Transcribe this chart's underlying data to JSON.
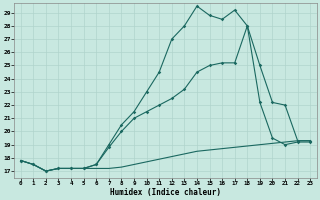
{
  "xlabel": "Humidex (Indice chaleur)",
  "bg_color": "#c8e8e0",
  "grid_color": "#b0d4cc",
  "line_color": "#1a6860",
  "xlim": [
    -0.5,
    23.5
  ],
  "ylim": [
    16.5,
    29.7
  ],
  "xticks": [
    0,
    1,
    2,
    3,
    4,
    5,
    6,
    7,
    8,
    9,
    10,
    11,
    12,
    13,
    14,
    15,
    16,
    17,
    18,
    19,
    20,
    21,
    22,
    23
  ],
  "yticks": [
    17,
    18,
    19,
    20,
    21,
    22,
    23,
    24,
    25,
    26,
    27,
    28,
    29
  ],
  "line1_x": [
    0,
    1,
    2,
    3,
    4,
    5,
    6,
    7,
    8,
    9,
    10,
    11,
    12,
    13,
    14,
    15,
    16,
    17,
    18,
    19,
    20,
    21,
    22,
    23
  ],
  "line1_y": [
    17.8,
    17.5,
    17.0,
    17.2,
    17.2,
    17.2,
    17.2,
    17.2,
    17.3,
    17.5,
    17.7,
    17.9,
    18.1,
    18.3,
    18.5,
    18.6,
    18.7,
    18.8,
    18.9,
    19.0,
    19.1,
    19.2,
    19.3,
    19.3
  ],
  "line2_x": [
    0,
    1,
    2,
    3,
    4,
    5,
    6,
    7,
    8,
    9,
    10,
    11,
    12,
    13,
    14,
    15,
    16,
    17,
    18,
    19,
    20,
    21,
    22,
    23
  ],
  "line2_y": [
    17.8,
    17.5,
    17.0,
    17.2,
    17.2,
    17.2,
    17.5,
    18.8,
    20.0,
    21.0,
    21.5,
    22.0,
    22.5,
    23.2,
    24.5,
    25.0,
    25.2,
    25.2,
    28.0,
    25.0,
    22.2,
    22.0,
    19.3,
    19.3
  ],
  "line3_x": [
    0,
    1,
    2,
    3,
    4,
    5,
    6,
    7,
    8,
    9,
    10,
    11,
    12,
    13,
    14,
    15,
    16,
    17,
    18,
    19,
    20,
    21,
    22,
    23
  ],
  "line3_y": [
    17.8,
    17.5,
    17.0,
    17.2,
    17.2,
    17.2,
    17.5,
    19.0,
    20.5,
    21.5,
    23.0,
    24.5,
    27.0,
    28.0,
    29.5,
    28.8,
    28.5,
    29.2,
    28.0,
    22.2,
    19.5,
    19.0,
    19.2,
    19.2
  ]
}
